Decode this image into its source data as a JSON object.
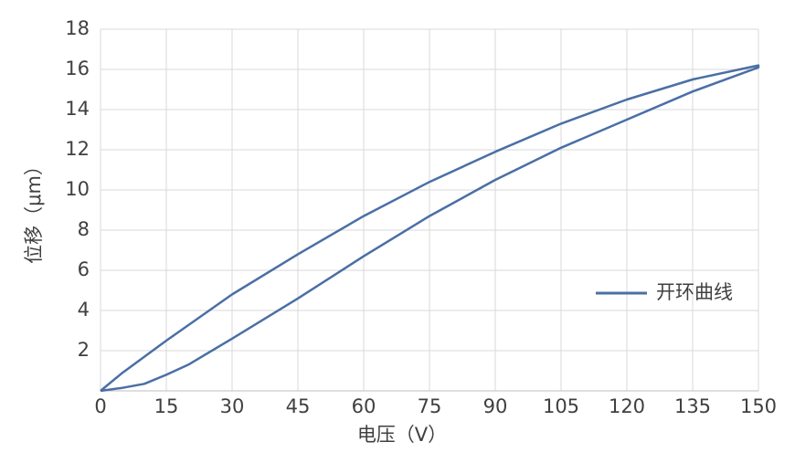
{
  "chart_data": {
    "type": "line",
    "x_label": "电压（V）",
    "y_label": "位移（μm）",
    "xlim": [
      0,
      150
    ],
    "xticks": [
      0,
      15,
      30,
      45,
      60,
      75,
      90,
      105,
      120,
      135,
      150
    ],
    "ylim": [
      0,
      18
    ],
    "yticks": [
      2,
      4,
      6,
      8,
      10,
      12,
      14,
      16,
      18
    ],
    "grid": true,
    "legend": "right",
    "x": [
      0,
      5,
      10,
      15,
      20,
      30,
      45,
      60,
      75,
      90,
      105,
      120,
      135,
      150,
      150,
      135,
      120,
      105,
      90,
      75,
      60,
      45,
      30,
      15,
      5,
      0
    ],
    "series": [
      {
        "name": "开环曲线",
        "color": "#4a6fa5",
        "values": [
          0,
          0.15,
          0.35,
          0.8,
          1.3,
          2.6,
          4.6,
          6.7,
          8.7,
          10.5,
          12.1,
          13.5,
          14.9,
          16.1,
          16.2,
          15.5,
          14.5,
          13.3,
          11.9,
          10.4,
          8.7,
          6.8,
          4.8,
          2.5,
          0.9,
          0
        ]
      }
    ]
  }
}
